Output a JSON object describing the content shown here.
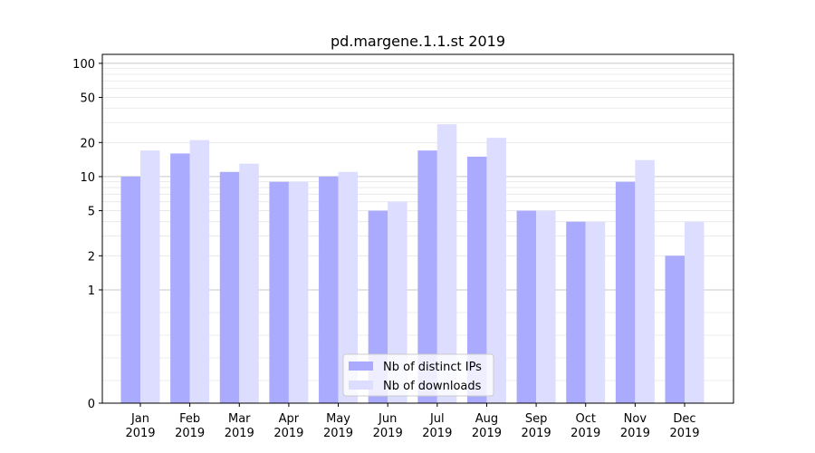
{
  "chart_data": {
    "type": "bar",
    "title": "pd.margene.1.1.st 2019",
    "xlabel": "",
    "ylabel": "",
    "yscale": "symlog",
    "ylim": [
      0,
      120
    ],
    "yticks": [
      0,
      1,
      2,
      5,
      10,
      20,
      50,
      100
    ],
    "grid": "y-minor",
    "legend_position": "lower-center",
    "categories": [
      "Jan\n2019",
      "Feb\n2019",
      "Mar\n2019",
      "Apr\n2019",
      "May\n2019",
      "Jun\n2019",
      "Jul\n2019",
      "Aug\n2019",
      "Sep\n2019",
      "Oct\n2019",
      "Nov\n2019",
      "Dec\n2019"
    ],
    "series": [
      {
        "name": "Nb of distinct IPs",
        "color": "#aaaaff",
        "values": [
          10,
          16,
          11,
          9,
          10,
          5,
          17,
          15,
          5,
          4,
          9,
          2
        ]
      },
      {
        "name": "Nb of downloads",
        "color": "#ddddff",
        "values": [
          17,
          21,
          13,
          9,
          11,
          6,
          29,
          22,
          5,
          4,
          14,
          4
        ]
      }
    ]
  }
}
